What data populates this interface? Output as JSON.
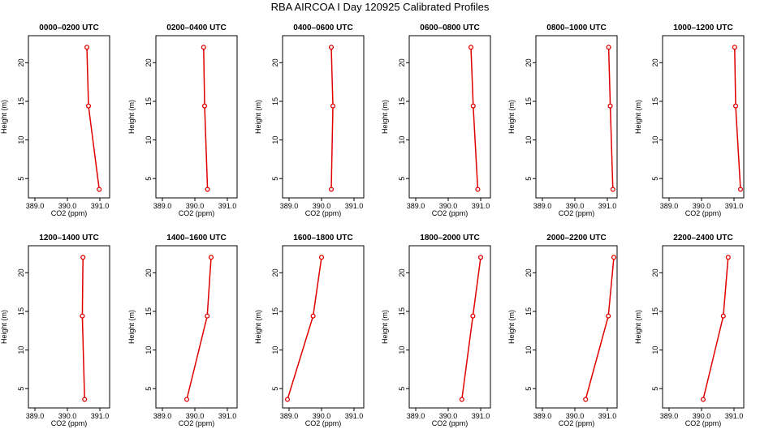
{
  "figure": {
    "title": "RBA AIRCOA I  Day 120925  Calibrated Profiles"
  },
  "chart_data": [
    {
      "type": "line",
      "title": "0000–0200 UTC",
      "xlabel": "CO2 (ppm)",
      "ylabel": "Height (m)",
      "xlim": [
        388.8,
        391.3
      ],
      "ylim": [
        2.5,
        23.5
      ],
      "xticks": [
        "389.0",
        "390.0",
        "391.0"
      ],
      "yticks": [
        "5",
        "10",
        "15",
        "20"
      ],
      "series": [
        {
          "color": "#e00000",
          "points": [
            {
              "x": 390.6,
              "y": 22
            },
            {
              "x": 390.65,
              "y": 14.4
            },
            {
              "x": 390.98,
              "y": 3.6
            }
          ]
        }
      ]
    },
    {
      "type": "line",
      "title": "0200–0400 UTC",
      "xlabel": "CO2 (ppm)",
      "ylabel": "Height (m)",
      "xlim": [
        388.8,
        391.3
      ],
      "ylim": [
        2.5,
        23.5
      ],
      "xticks": [
        "389.0",
        "390.0",
        "391.0"
      ],
      "yticks": [
        "5",
        "10",
        "15",
        "20"
      ],
      "series": [
        {
          "color": "#e00000",
          "points": [
            {
              "x": 390.27,
              "y": 22
            },
            {
              "x": 390.3,
              "y": 14.4
            },
            {
              "x": 390.39,
              "y": 3.6
            }
          ]
        }
      ]
    },
    {
      "type": "line",
      "title": "0400–0600 UTC",
      "xlabel": "CO2 (ppm)",
      "ylabel": "Height (m)",
      "xlim": [
        388.8,
        391.3
      ],
      "ylim": [
        2.5,
        23.5
      ],
      "xticks": [
        "389.0",
        "390.0",
        "391.0"
      ],
      "yticks": [
        "5",
        "10",
        "15",
        "20"
      ],
      "series": [
        {
          "color": "#e00000",
          "points": [
            {
              "x": 390.3,
              "y": 22
            },
            {
              "x": 390.35,
              "y": 14.4
            },
            {
              "x": 390.3,
              "y": 3.6
            }
          ]
        }
      ]
    },
    {
      "type": "line",
      "title": "0600–0800 UTC",
      "xlabel": "CO2 (ppm)",
      "ylabel": "Height (m)",
      "xlim": [
        388.8,
        391.3
      ],
      "ylim": [
        2.5,
        23.5
      ],
      "xticks": [
        "389.0",
        "390.0",
        "391.0"
      ],
      "yticks": [
        "5",
        "10",
        "15",
        "20"
      ],
      "series": [
        {
          "color": "#e00000",
          "points": [
            {
              "x": 390.7,
              "y": 22
            },
            {
              "x": 390.77,
              "y": 14.4
            },
            {
              "x": 390.91,
              "y": 3.6
            }
          ]
        }
      ]
    },
    {
      "type": "line",
      "title": "0800–1000 UTC",
      "xlabel": "CO2 (ppm)",
      "ylabel": "Height (m)",
      "xlim": [
        388.8,
        391.3
      ],
      "ylim": [
        2.5,
        23.5
      ],
      "xticks": [
        "389.0",
        "390.0",
        "391.0"
      ],
      "yticks": [
        "5",
        "10",
        "15",
        "20"
      ],
      "series": [
        {
          "color": "#e00000",
          "points": [
            {
              "x": 391.04,
              "y": 22
            },
            {
              "x": 391.09,
              "y": 14.4
            },
            {
              "x": 391.17,
              "y": 3.6
            }
          ]
        }
      ]
    },
    {
      "type": "line",
      "title": "1000–1200 UTC",
      "xlabel": "CO2 (ppm)",
      "ylabel": "Height (m)",
      "xlim": [
        388.8,
        391.3
      ],
      "ylim": [
        2.5,
        23.5
      ],
      "xticks": [
        "389.0",
        "390.0",
        "391.0"
      ],
      "yticks": [
        "5",
        "10",
        "15",
        "20"
      ],
      "series": [
        {
          "color": "#e00000",
          "points": [
            {
              "x": 391.02,
              "y": 22
            },
            {
              "x": 391.05,
              "y": 14.4
            },
            {
              "x": 391.2,
              "y": 3.6
            }
          ]
        }
      ]
    },
    {
      "type": "line",
      "title": "1200–1400 UTC",
      "xlabel": "CO2 (ppm)",
      "ylabel": "Height (m)",
      "xlim": [
        388.8,
        391.3
      ],
      "ylim": [
        2.5,
        23.5
      ],
      "xticks": [
        "389.0",
        "390.0",
        "391.0"
      ],
      "yticks": [
        "5",
        "10",
        "15",
        "20"
      ],
      "series": [
        {
          "color": "#e00000",
          "points": [
            {
              "x": 390.48,
              "y": 22
            },
            {
              "x": 390.46,
              "y": 14.4
            },
            {
              "x": 390.53,
              "y": 3.6
            }
          ]
        }
      ]
    },
    {
      "type": "line",
      "title": "1400–1600 UTC",
      "xlabel": "CO2 (ppm)",
      "ylabel": "Height (m)",
      "xlim": [
        388.8,
        391.3
      ],
      "ylim": [
        2.5,
        23.5
      ],
      "xticks": [
        "389.0",
        "390.0",
        "391.0"
      ],
      "yticks": [
        "5",
        "10",
        "15",
        "20"
      ],
      "series": [
        {
          "color": "#e00000",
          "points": [
            {
              "x": 390.5,
              "y": 22
            },
            {
              "x": 390.38,
              "y": 14.4
            },
            {
              "x": 389.75,
              "y": 3.6
            }
          ]
        }
      ]
    },
    {
      "type": "line",
      "title": "1600–1800 UTC",
      "xlabel": "CO2 (ppm)",
      "ylabel": "Height (m)",
      "xlim": [
        388.8,
        391.3
      ],
      "ylim": [
        2.5,
        23.5
      ],
      "xticks": [
        "389.0",
        "390.0",
        "391.0"
      ],
      "yticks": [
        "5",
        "10",
        "15",
        "20"
      ],
      "series": [
        {
          "color": "#e00000",
          "points": [
            {
              "x": 390.0,
              "y": 22
            },
            {
              "x": 389.74,
              "y": 14.4
            },
            {
              "x": 388.95,
              "y": 3.6
            }
          ]
        }
      ]
    },
    {
      "type": "line",
      "title": "1800–2000 UTC",
      "xlabel": "CO2 (ppm)",
      "ylabel": "Height (m)",
      "xlim": [
        388.8,
        391.3
      ],
      "ylim": [
        2.5,
        23.5
      ],
      "xticks": [
        "389.0",
        "390.0",
        "391.0"
      ],
      "yticks": [
        "5",
        "10",
        "15",
        "20"
      ],
      "series": [
        {
          "color": "#e00000",
          "points": [
            {
              "x": 391.0,
              "y": 22
            },
            {
              "x": 390.76,
              "y": 14.4
            },
            {
              "x": 390.42,
              "y": 3.6
            }
          ]
        }
      ]
    },
    {
      "type": "line",
      "title": "2000–2200 UTC",
      "xlabel": "CO2 (ppm)",
      "ylabel": "Height (m)",
      "xlim": [
        388.8,
        391.3
      ],
      "ylim": [
        2.5,
        23.5
      ],
      "xticks": [
        "389.0",
        "390.0",
        "391.0"
      ],
      "yticks": [
        "5",
        "10",
        "15",
        "20"
      ],
      "series": [
        {
          "color": "#e00000",
          "points": [
            {
              "x": 391.2,
              "y": 22
            },
            {
              "x": 391.03,
              "y": 14.4
            },
            {
              "x": 390.33,
              "y": 3.6
            }
          ]
        }
      ]
    },
    {
      "type": "line",
      "title": "2200–2400 UTC",
      "xlabel": "CO2 (ppm)",
      "ylabel": "Height (m)",
      "xlim": [
        388.8,
        391.3
      ],
      "ylim": [
        2.5,
        23.5
      ],
      "xticks": [
        "389.0",
        "390.0",
        "391.0"
      ],
      "yticks": [
        "5",
        "10",
        "15",
        "20"
      ],
      "series": [
        {
          "color": "#e00000",
          "points": [
            {
              "x": 390.82,
              "y": 22
            },
            {
              "x": 390.67,
              "y": 14.4
            },
            {
              "x": 390.05,
              "y": 3.6
            }
          ]
        }
      ]
    }
  ]
}
